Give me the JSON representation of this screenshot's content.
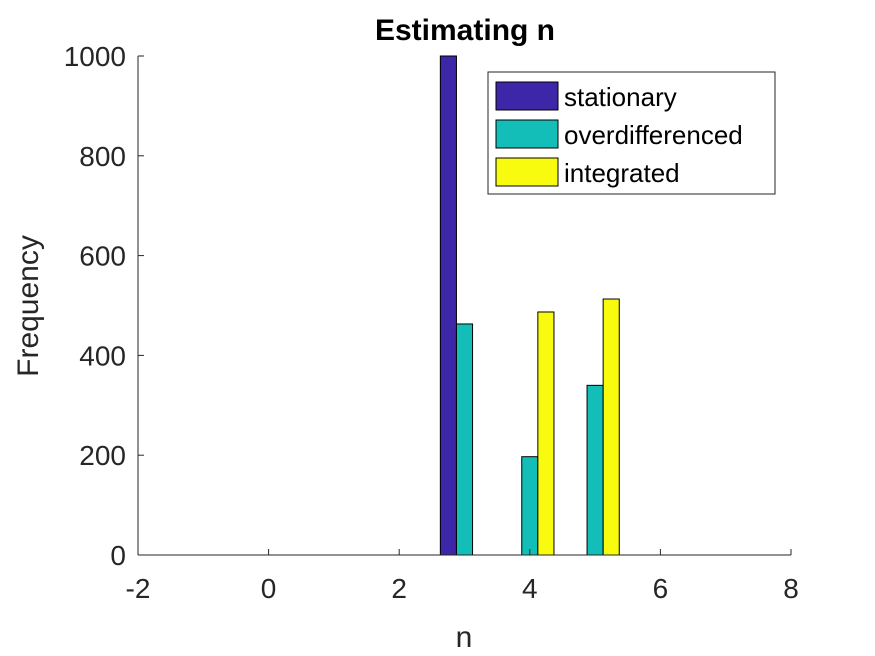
{
  "chart_data": {
    "type": "bar",
    "title": "Estimating n",
    "xlabel": "n",
    "ylabel": "Frequency",
    "xlim": [
      -2,
      8
    ],
    "ylim": [
      0,
      1000
    ],
    "xticks": [
      "-2",
      "0",
      "2",
      "4",
      "6",
      "8"
    ],
    "yticks": [
      "0",
      "200",
      "400",
      "600",
      "800",
      "1000"
    ],
    "x": [
      0,
      1,
      2,
      3,
      4,
      5,
      6
    ],
    "series": [
      {
        "name": "stationary",
        "color": "#3e26a8",
        "values": [
          0,
          0,
          0,
          1000,
          0,
          0,
          0
        ]
      },
      {
        "name": "overdifferenced",
        "color": "#13beb8",
        "values": [
          0,
          0,
          0,
          463,
          197,
          340,
          0
        ]
      },
      {
        "name": "integrated",
        "color": "#f9fb0e",
        "values": [
          0,
          0,
          0,
          0,
          487,
          513,
          0
        ]
      }
    ],
    "grid": false,
    "legend_position": "top-right"
  }
}
